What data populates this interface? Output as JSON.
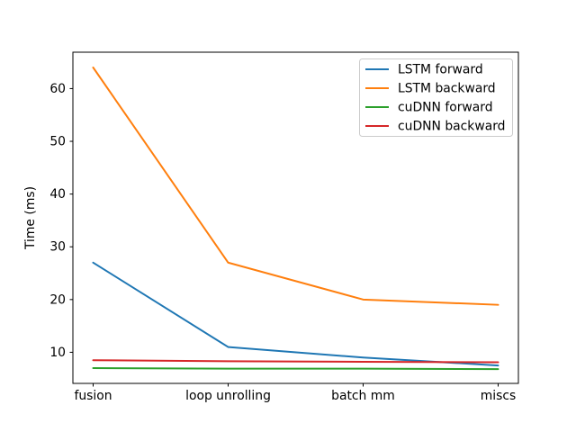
{
  "chart_data": {
    "type": "line",
    "title": "",
    "xlabel": "",
    "ylabel": "Time (ms)",
    "categories": [
      "fusion",
      "loop unrolling",
      "batch mm",
      "miscs"
    ],
    "series": [
      {
        "name": "LSTM forward",
        "color": "#1f77b4",
        "values": [
          27,
          11,
          9,
          7.5
        ]
      },
      {
        "name": "LSTM backward",
        "color": "#ff7f0e",
        "values": [
          64,
          27,
          20,
          19
        ]
      },
      {
        "name": "cuDNN forward",
        "color": "#2ca02c",
        "values": [
          7.0,
          6.9,
          6.9,
          6.8
        ]
      },
      {
        "name": "cuDNN backward",
        "color": "#d62728",
        "values": [
          8.5,
          8.3,
          8.2,
          8.1
        ]
      }
    ],
    "yticks": [
      10,
      20,
      30,
      40,
      50,
      60
    ],
    "ylim": [
      4.1,
      66.9
    ],
    "grid": false,
    "legend_position": "upper right",
    "background_color": "#ffffff",
    "axis_color": "#000000",
    "legend_border_color": "#cccccc",
    "line_width": 2
  }
}
